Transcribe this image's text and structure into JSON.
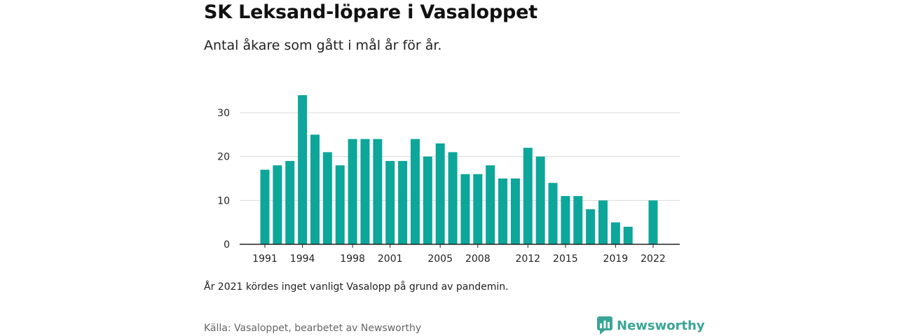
{
  "header": {
    "title": "SK Leksand-löpare i Vasaloppet",
    "subtitle": "Antal åkare som gått i mål år för år."
  },
  "footer": {
    "note": "År 2021 kördes inget vanligt Vasalopp på grund av pandemin.",
    "source": "Källa: Vasaloppet, bearbetet av Newsworthy",
    "brand": "Newsworthy",
    "brand_icon": "newsworthy-logo-icon"
  },
  "colors": {
    "bar": "#0da69a",
    "grid": "#d9d9d9",
    "axis": "#222222",
    "brand": "#3aa597"
  },
  "chart_data": {
    "type": "bar",
    "title": "SK Leksand-löpare i Vasaloppet",
    "subtitle": "Antal åkare som gått i mål år för år.",
    "xlabel": "",
    "ylabel": "",
    "categories": [
      1991,
      1992,
      1993,
      1994,
      1995,
      1996,
      1997,
      1998,
      1999,
      2000,
      2001,
      2002,
      2003,
      2004,
      2005,
      2006,
      2007,
      2008,
      2009,
      2010,
      2011,
      2012,
      2013,
      2014,
      2015,
      2016,
      2017,
      2018,
      2019,
      2020,
      2021,
      2022
    ],
    "values": [
      17,
      18,
      19,
      34,
      25,
      21,
      18,
      24,
      24,
      24,
      19,
      19,
      24,
      20,
      23,
      21,
      16,
      16,
      18,
      15,
      15,
      22,
      20,
      14,
      11,
      11,
      8,
      10,
      5,
      4,
      null,
      10
    ],
    "x_tick_labels": [
      "1991",
      "1994",
      "1998",
      "2001",
      "2005",
      "2008",
      "2012",
      "2015",
      "2019",
      "2022"
    ],
    "y_ticks": [
      0,
      10,
      20,
      30
    ],
    "ylim": [
      0,
      35
    ],
    "grid": true
  }
}
